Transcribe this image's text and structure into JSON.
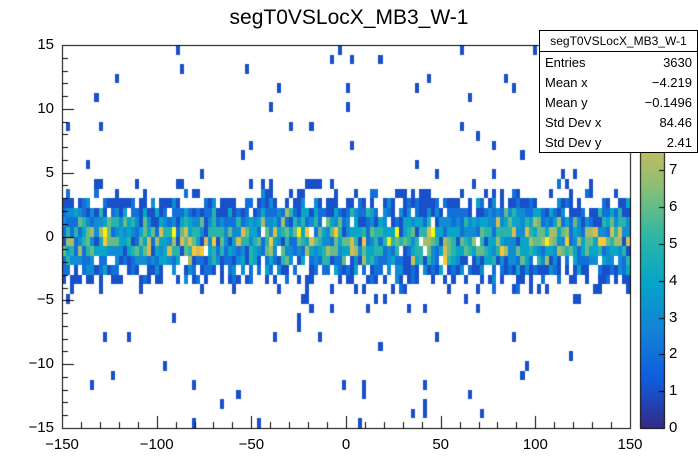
{
  "chart_data": {
    "type": "heatmap",
    "title": "segT0VSLocX_MB3_W-1",
    "xlabel": "",
    "ylabel": "",
    "x_range": [
      -150,
      150
    ],
    "y_range": [
      -15,
      15
    ],
    "z_range": [
      0,
      10.4
    ],
    "nbinsx": 140,
    "nbinsy": 40,
    "x_ticks": [
      -150,
      -100,
      -50,
      0,
      50,
      100,
      150
    ],
    "x_tick_labels": [
      "−150",
      "−100",
      "−50",
      "0",
      "50",
      "100",
      "150"
    ],
    "y_ticks": [
      -15,
      -10,
      -5,
      0,
      5,
      10,
      15
    ],
    "y_tick_labels": [
      "−15",
      "−10",
      "−5",
      "0",
      "5",
      "10",
      "15"
    ],
    "z_ticks": [
      0,
      1,
      2,
      3,
      4,
      5,
      6,
      7
    ],
    "z_tick_labels": [
      "0",
      "1",
      "2",
      "3",
      "4",
      "5",
      "6",
      "7"
    ],
    "x_minor_step": 10,
    "y_minor_step": 1,
    "grid": false,
    "legend_position": "right-palette",
    "palette": [
      "#352a87",
      "#0f5cdd",
      "#1481d6",
      "#06a4ca",
      "#2eb7a4",
      "#87bf77",
      "#d1bb59",
      "#fec832",
      "#f9fb0e"
    ],
    "entries": 3630,
    "stats": {
      "mean_x": -4.219,
      "mean_y": -0.1496,
      "std_dev_x": 84.46,
      "std_dev_y": 2.41
    },
    "distribution_model": {
      "description": "dense horizontal band centered at y~0 spanning full x range, plus sparse outlier bins up to |y|=15",
      "seed": 1234567,
      "band_sigma_y": 1.5,
      "outlier_fraction": 0.03
    }
  },
  "stats_box": {
    "title": "segT0VSLocX_MB3_W-1",
    "rows": [
      {
        "label": "Entries",
        "value": "3630"
      },
      {
        "label": "Mean x",
        "value": "−4.219"
      },
      {
        "label": "Mean y",
        "value": "−0.1496"
      },
      {
        "label": "Std Dev x",
        "value": "84.46"
      },
      {
        "label": "Std Dev y",
        "value": "2.41"
      }
    ]
  },
  "colors": {
    "background": "#ffffff",
    "frame": "#000000",
    "text": "#000000"
  }
}
